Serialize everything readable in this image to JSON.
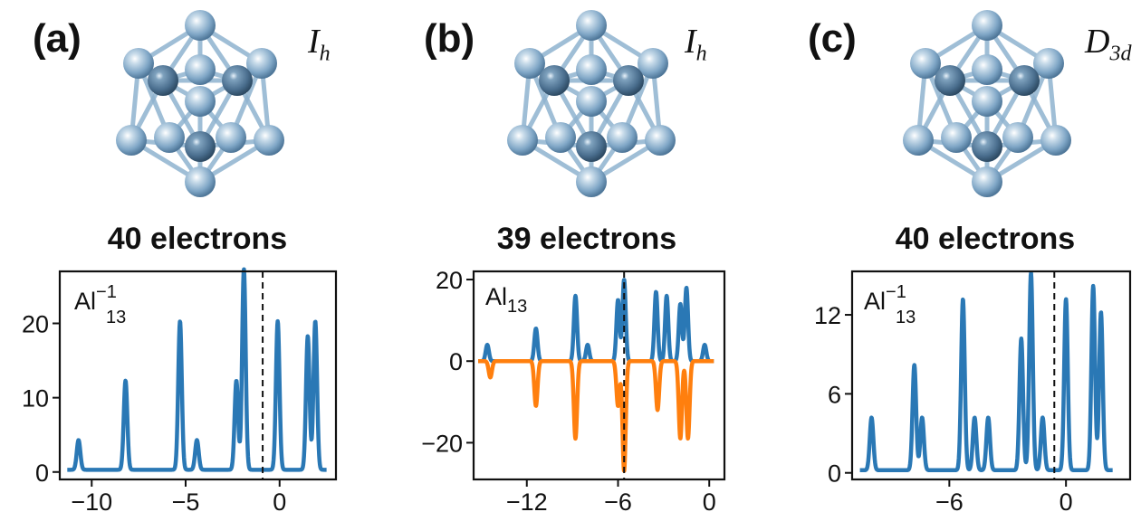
{
  "panels": [
    {
      "label": "(a)",
      "symmetry_main": "I",
      "symmetry_sub": "h",
      "electrons": "40 electrons",
      "formula_main": "Al",
      "formula_sub": "13",
      "formula_sup": "−1"
    },
    {
      "label": "(b)",
      "symmetry_main": "I",
      "symmetry_sub": "h",
      "electrons": "39 electrons",
      "formula_main": "Al",
      "formula_sub": "13",
      "formula_sup": ""
    },
    {
      "label": "(c)",
      "symmetry_main": "D",
      "symmetry_sub": "3d",
      "electrons": "40 electrons",
      "formula_main": "Al",
      "formula_sub": "13",
      "formula_sup": "−1"
    }
  ],
  "colors": {
    "series_up": "#2a78b5",
    "series_down": "#ff7f0e",
    "atom": "#8fb3cf",
    "atom_dark": "#5a84a6",
    "bond": "#8fb3cf"
  },
  "chart_data": [
    {
      "type": "line",
      "xlim": [
        -11.7,
        3.0
      ],
      "ylim": [
        -1,
        27
      ],
      "xticks": [
        -10,
        -5,
        0
      ],
      "xtick_labels": [
        "−10",
        "−5",
        "0"
      ],
      "yticks": [
        0,
        10,
        20
      ],
      "ytick_labels": [
        "0",
        "10",
        "20"
      ],
      "fermi_level": -0.9,
      "baseline": 0.3,
      "series": [
        {
          "peaks": [
            [
              -10.7,
              4
            ],
            [
              -8.2,
              12
            ],
            [
              -5.3,
              20
            ],
            [
              -4.4,
              4
            ],
            [
              -2.3,
              12
            ],
            [
              -1.9,
              27
            ],
            [
              -0.1,
              20
            ],
            [
              1.5,
              18
            ],
            [
              1.9,
              20
            ]
          ]
        }
      ]
    },
    {
      "type": "line",
      "xlim": [
        -15.5,
        1.0
      ],
      "ylim": [
        -29,
        22
      ],
      "xticks": [
        -12,
        -6,
        0
      ],
      "xtick_labels": [
        "−12",
        "−6",
        "0"
      ],
      "yticks": [
        -20,
        0,
        20
      ],
      "ytick_labels": [
        "−20",
        "0",
        "20"
      ],
      "fermi_level": -5.6,
      "baseline": 0,
      "series": [
        {
          "peaks": [
            [
              -14.6,
              4
            ],
            [
              -11.4,
              8
            ],
            [
              -8.8,
              16
            ],
            [
              -8.0,
              4
            ],
            [
              -6.0,
              15
            ],
            [
              -5.6,
              20
            ],
            [
              -3.5,
              17
            ],
            [
              -2.8,
              16
            ],
            [
              -1.9,
              14
            ],
            [
              -1.5,
              18
            ],
            [
              -0.3,
              4
            ]
          ]
        },
        {
          "peaks": [
            [
              -14.4,
              -4
            ],
            [
              -11.4,
              -11
            ],
            [
              -8.8,
              -19
            ],
            [
              -6.0,
              -11
            ],
            [
              -5.6,
              -27
            ],
            [
              -3.4,
              -12
            ],
            [
              -1.9,
              -19
            ],
            [
              -1.4,
              -19
            ]
          ]
        }
      ]
    },
    {
      "type": "line",
      "xlim": [
        -11.0,
        3.3
      ],
      "ylim": [
        -0.5,
        15.3
      ],
      "xticks": [
        -6,
        0
      ],
      "xtick_labels": [
        "−6",
        "0"
      ],
      "yticks": [
        0,
        6,
        12
      ],
      "ytick_labels": [
        "0",
        "6",
        "12"
      ],
      "fermi_level": -0.6,
      "baseline": 0.2,
      "series": [
        {
          "peaks": [
            [
              -10.0,
              4
            ],
            [
              -7.8,
              8
            ],
            [
              -7.4,
              4
            ],
            [
              -5.3,
              13
            ],
            [
              -4.7,
              4
            ],
            [
              -4.0,
              4
            ],
            [
              -2.3,
              10
            ],
            [
              -1.8,
              15
            ],
            [
              -1.2,
              4
            ],
            [
              0.0,
              13
            ],
            [
              1.4,
              14
            ],
            [
              1.8,
              12
            ]
          ]
        }
      ]
    }
  ]
}
